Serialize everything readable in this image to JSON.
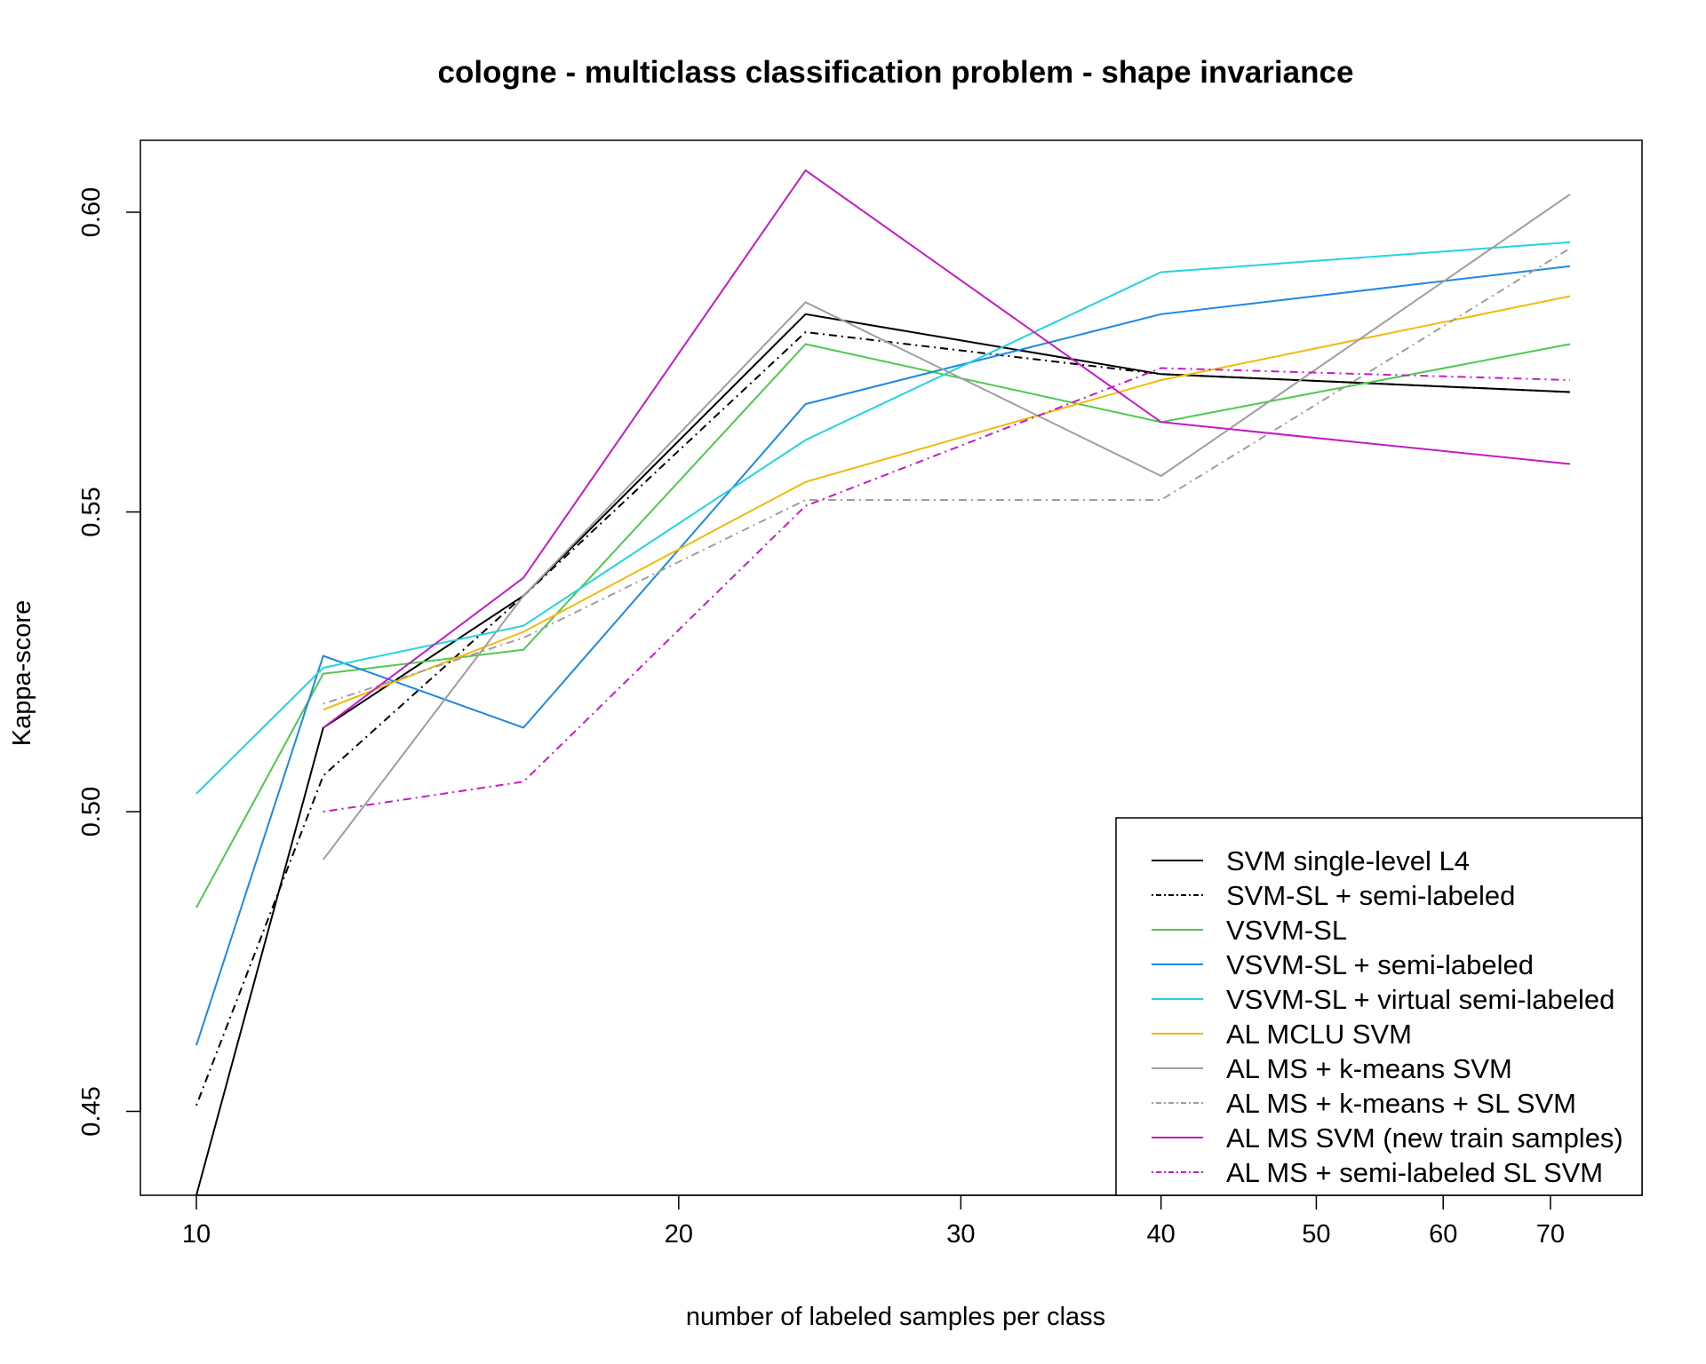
{
  "chart_data": {
    "type": "line",
    "title": "cologne - multiclass classification problem - shape invariance",
    "xlabel": "number of labeled samples per class",
    "ylabel": "Kappa-score",
    "x_scale": "log",
    "x": [
      10,
      12,
      16,
      24,
      40,
      72
    ],
    "x_ticks": [
      10,
      20,
      30,
      40,
      50,
      60,
      70
    ],
    "y_ticks": [
      0.45,
      0.5,
      0.55,
      0.6
    ],
    "y_tick_labels": [
      "0.45",
      "0.50",
      "0.55",
      "0.60"
    ],
    "xlim": [
      10,
      72
    ],
    "ylim": [
      0.436,
      0.612
    ],
    "legend_position": "bottom-right",
    "series": [
      {
        "name": "SVM single-level L4",
        "color": "#000000",
        "dash": "solid",
        "values": [
          0.436,
          0.514,
          0.536,
          0.583,
          0.573,
          0.57
        ]
      },
      {
        "name": "SVM-SL + semi-labeled",
        "color": "#000000",
        "dash": "dotdash",
        "values": [
          0.451,
          0.506,
          0.536,
          0.58,
          0.573,
          0.57
        ]
      },
      {
        "name": "VSVM-SL",
        "color": "#4dc94d",
        "dash": "solid",
        "values": [
          0.484,
          0.523,
          0.527,
          0.578,
          0.565,
          0.578
        ]
      },
      {
        "name": "VSVM-SL + semi-labeled",
        "color": "#1e88e5",
        "dash": "solid",
        "values": [
          0.461,
          0.526,
          0.514,
          0.568,
          0.583,
          0.591
        ]
      },
      {
        "name": "VSVM-SL + virtual semi-labeled",
        "color": "#22d3e0",
        "dash": "solid",
        "values": [
          0.503,
          0.524,
          0.531,
          0.562,
          0.59,
          0.595
        ]
      },
      {
        "name": "AL MCLU SVM",
        "color": "#f2b90d",
        "dash": "solid",
        "values": [
          null,
          0.517,
          0.53,
          0.555,
          0.572,
          0.586
        ]
      },
      {
        "name": "AL MS + k-means SVM",
        "color": "#9e9e9e",
        "dash": "solid",
        "values": [
          null,
          0.492,
          0.536,
          0.585,
          0.556,
          0.603
        ]
      },
      {
        "name": "AL MS + k-means + SL SVM",
        "color": "#9e9e9e",
        "dash": "dotdash",
        "values": [
          null,
          0.518,
          0.529,
          0.552,
          0.552,
          0.594
        ]
      },
      {
        "name": "AL MS SVM (new train samples)",
        "color": "#c41cc4",
        "dash": "solid",
        "values": [
          null,
          0.514,
          0.539,
          0.607,
          0.565,
          0.558
        ]
      },
      {
        "name": "AL MS + semi-labeled SL SVM",
        "color": "#c41cc4",
        "dash": "dotdash",
        "values": [
          null,
          0.5,
          0.505,
          0.551,
          0.574,
          0.572
        ]
      }
    ]
  }
}
